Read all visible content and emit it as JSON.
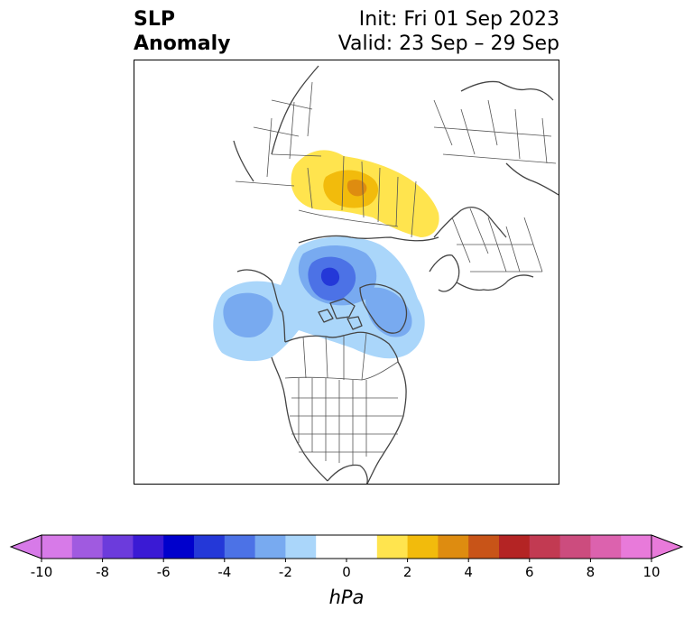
{
  "title": {
    "left_line1": "SLP",
    "left_line2": "Anomaly",
    "right_line1": "Init: Fri 01 Sep 2023",
    "right_line2": "Valid: 23 Sep – 29 Sep"
  },
  "colorbar": {
    "unit_label": "hPa",
    "tick_labels": [
      "-10",
      "-8",
      "-6",
      "-4",
      "-2",
      "0",
      "2",
      "4",
      "6",
      "8",
      "10"
    ],
    "colors": [
      "#d77ae8",
      "#a05ae0",
      "#6c3bdc",
      "#3a1ad4",
      "#0000cc",
      "#2438d8",
      "#4c72e6",
      "#78aaf0",
      "#aad6fa",
      "#ffffff",
      "#ffffff",
      "#ffe44e",
      "#f2bb0c",
      "#de8c10",
      "#c85418",
      "#b42424",
      "#c23a52",
      "#cc4c7e",
      "#dc62ae",
      "#e87ada"
    ],
    "extend_low_color": "#d77ae8",
    "extend_high_color": "#e87ada"
  },
  "anomaly_colors": {
    "neg_light": "#aad6fa",
    "neg_mid": "#78aaf0",
    "neg_strong": "#4c72e6",
    "neg_core": "#2438d8",
    "pos_light": "#ffe44e",
    "pos_mid": "#f2bb0c",
    "pos_strong": "#de8c10"
  }
}
